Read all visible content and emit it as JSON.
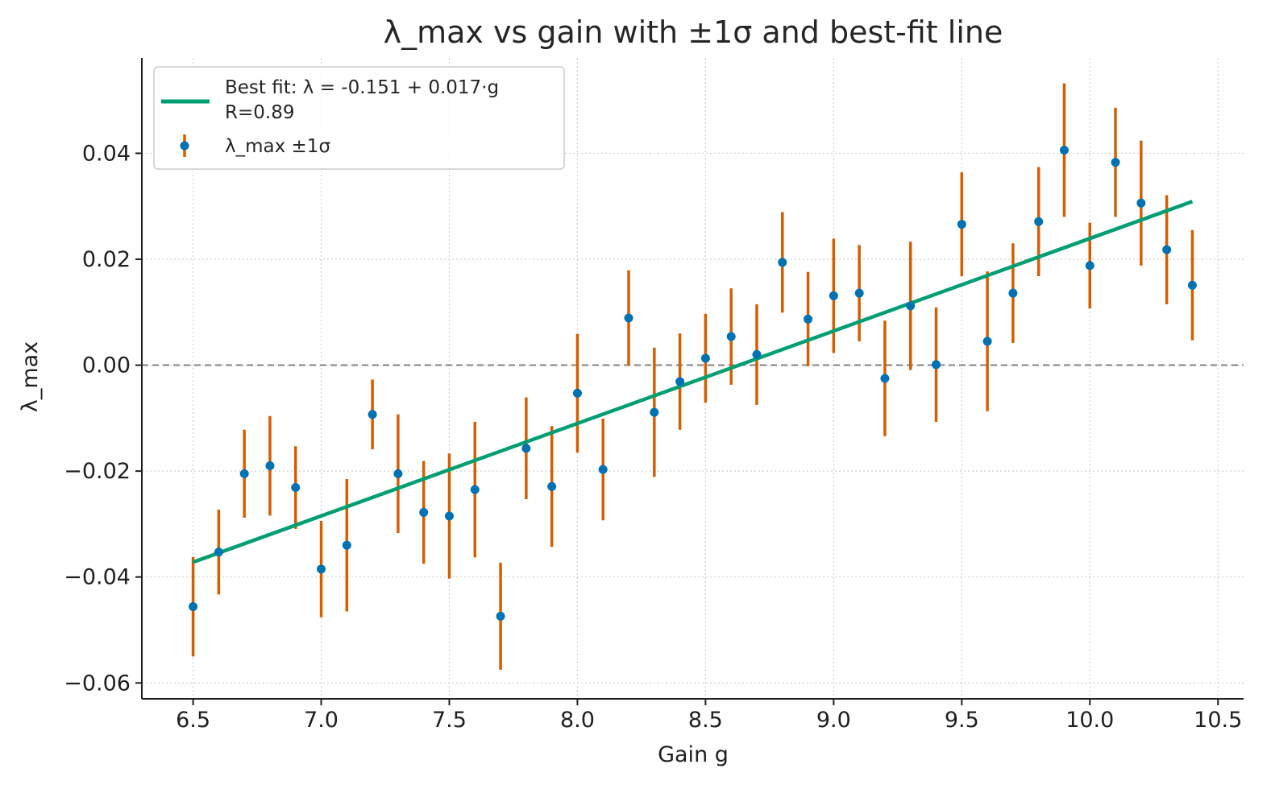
{
  "chart_data": {
    "type": "scatter",
    "title": "λ_max vs gain with ±1σ and best-fit line",
    "xlabel": "Gain g",
    "ylabel": "λ_max",
    "xlim": [
      6.3,
      10.6
    ],
    "ylim": [
      -0.063,
      0.058
    ],
    "xticks": [
      6.5,
      7.0,
      7.5,
      8.0,
      8.5,
      9.0,
      9.5,
      10.0,
      10.5
    ],
    "xtick_labels": [
      "6.5",
      "7.0",
      "7.5",
      "8.0",
      "8.5",
      "9.0",
      "9.5",
      "10.0",
      "10.5"
    ],
    "yticks": [
      -0.06,
      -0.04,
      -0.02,
      0.0,
      0.02,
      0.04
    ],
    "ytick_labels": [
      "−0.06",
      "−0.04",
      "−0.02",
      "0.00",
      "0.02",
      "0.04"
    ],
    "grid": true,
    "legend_position": "top-left",
    "reference_line": {
      "y": 0.0,
      "style": "dashed",
      "color": "#808080"
    },
    "series": [
      {
        "name": "λ_max ±1σ",
        "kind": "errorbar",
        "marker_color": "#0072B2",
        "error_color": "#D55E00",
        "x": [
          6.5,
          6.6,
          6.7,
          6.8,
          6.9,
          7.0,
          7.1,
          7.2,
          7.3,
          7.4,
          7.5,
          7.6,
          7.7,
          7.8,
          7.9,
          8.0,
          8.1,
          8.2,
          8.3,
          8.4,
          8.5,
          8.6,
          8.7,
          8.8,
          8.9,
          9.0,
          9.1,
          9.2,
          9.3,
          9.4,
          9.5,
          9.6,
          9.7,
          9.8,
          9.9,
          10.0,
          10.1,
          10.2,
          10.3,
          10.4
        ],
        "y": [
          -0.0456,
          -0.0353,
          -0.0205,
          -0.019,
          -0.0231,
          -0.0385,
          -0.034,
          -0.0093,
          -0.0205,
          -0.0278,
          -0.0285,
          -0.0235,
          -0.0474,
          -0.0157,
          -0.0229,
          -0.0053,
          -0.0197,
          0.0089,
          -0.0089,
          -0.0031,
          0.0013,
          0.0054,
          0.002,
          0.0194,
          0.0087,
          0.0131,
          0.0136,
          -0.0025,
          0.0112,
          0.0001,
          0.0266,
          0.0045,
          0.0136,
          0.0271,
          0.0406,
          0.0188,
          0.0383,
          0.0306,
          0.0218,
          0.0151
        ],
        "yerr": [
          0.0094,
          0.008,
          0.0083,
          0.0094,
          0.0078,
          0.0091,
          0.0125,
          0.0066,
          0.0112,
          0.0097,
          0.0118,
          0.0128,
          0.0101,
          0.0096,
          0.0114,
          0.0112,
          0.0096,
          0.009,
          0.0122,
          0.0091,
          0.0084,
          0.0091,
          0.0095,
          0.0095,
          0.0089,
          0.0108,
          0.0091,
          0.0109,
          0.0121,
          0.0108,
          0.0098,
          0.0132,
          0.0094,
          0.0103,
          0.0126,
          0.0081,
          0.0103,
          0.0118,
          0.0103,
          0.0104
        ]
      },
      {
        "name": "Best fit: λ = -0.151 + 0.017·g\nR=0.89",
        "legend_lines": [
          "Best fit: λ = -0.151 + 0.017·g",
          "R=0.89"
        ],
        "kind": "line",
        "color": "#009E73",
        "x": [
          6.5,
          10.4
        ],
        "y": [
          -0.0372,
          0.0309
        ]
      }
    ]
  }
}
